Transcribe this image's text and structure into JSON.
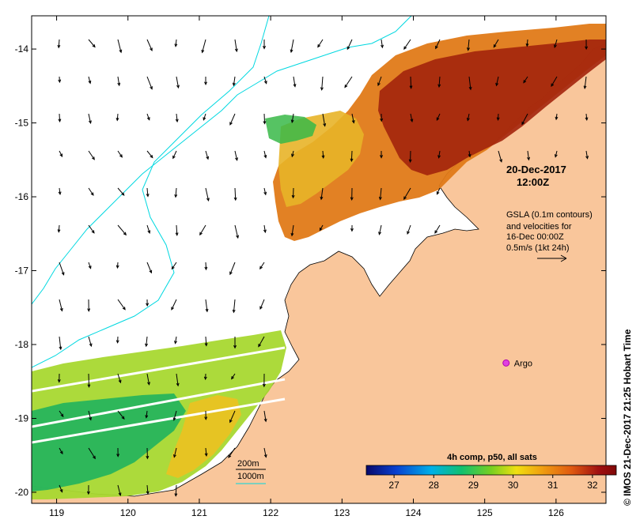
{
  "map": {
    "lon_range": [
      118.65,
      126.7
    ],
    "lat_range": [
      -20.15,
      -13.55
    ],
    "lon_ticks": [
      "119",
      "120",
      "121",
      "122",
      "123",
      "124",
      "125",
      "126"
    ],
    "lat_ticks": [
      "-14",
      "-15",
      "-16",
      "-17",
      "-18",
      "-19",
      "-20"
    ],
    "colors": {
      "land": "#f9c69b",
      "ocean": "#ffffff",
      "isobath_200m": "#000000",
      "isobath_1000m": "#00d8e0",
      "argo": "#e040e0"
    }
  },
  "annotations": {
    "date": "20-Dec-2017",
    "time": "12:00Z",
    "gsla_line1": "GSLA (0.1m contours)",
    "gsla_line2": "and velocities for",
    "gsla_line3": "16-Dec 00:00Z",
    "gsla_line4": "0.5m/s (1kt 24h)",
    "argo_label": "Argo",
    "legend_200m": "200m",
    "legend_1000m": "1000m",
    "credit": "© IMOS 21-Dec-2017 21:25 Hobart Time"
  },
  "argo_float": {
    "lon": 125.3,
    "lat": -18.25
  },
  "colorbar": {
    "title": "4h comp, p50, all sats",
    "range": [
      26.3,
      32.6
    ],
    "ticks": [
      "27",
      "28",
      "29",
      "30",
      "31",
      "32"
    ],
    "stops": [
      "#08086b",
      "#0840d0",
      "#00b0e8",
      "#10c070",
      "#78d020",
      "#f0e010",
      "#f0a010",
      "#e05a10",
      "#a01010",
      "#800808"
    ]
  }
}
